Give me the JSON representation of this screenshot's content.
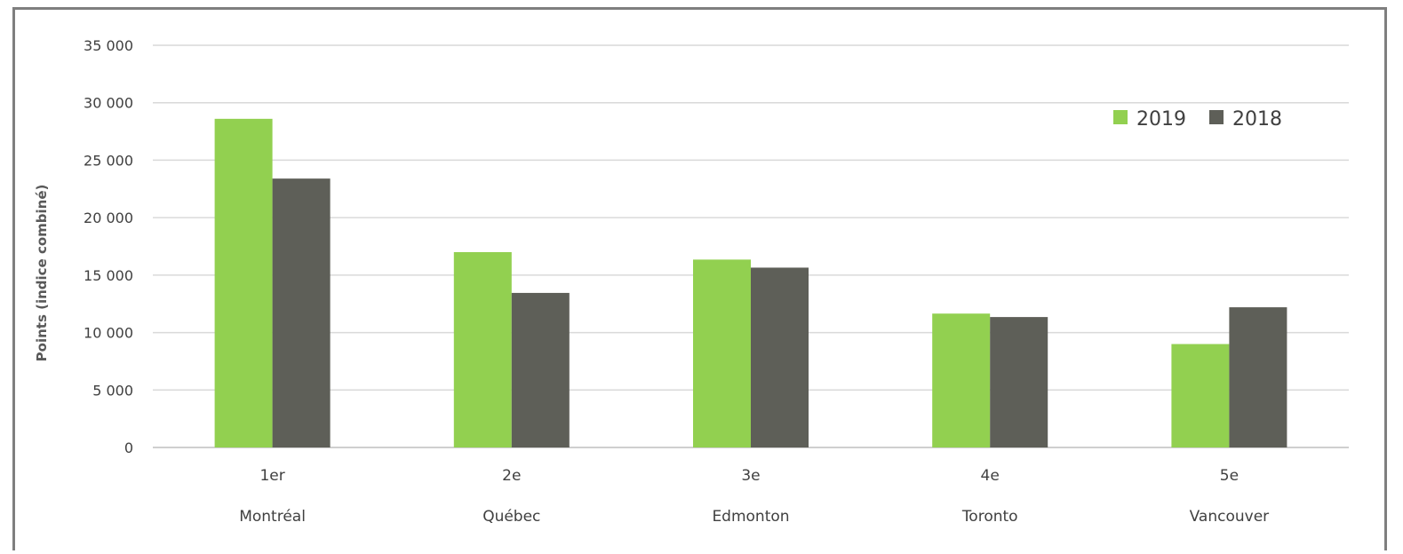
{
  "chart_data": {
    "type": "bar",
    "title": "",
    "xlabel": "",
    "ylabel": "Points (indice combiné)",
    "ylim": [
      0,
      35000
    ],
    "yticks": [
      0,
      5000,
      10000,
      15000,
      20000,
      25000,
      30000,
      35000
    ],
    "ytick_labels": [
      "0",
      "5 000",
      "10 000",
      "15 000",
      "20 000",
      "25 000",
      "30 000",
      "35 000"
    ],
    "categories": [
      {
        "rank": "1er",
        "city": "Montréal"
      },
      {
        "rank": "2e",
        "city": "Québec"
      },
      {
        "rank": "3e",
        "city": "Edmonton"
      },
      {
        "rank": "4e",
        "city": "Toronto"
      },
      {
        "rank": "5e",
        "city": "Vancouver"
      }
    ],
    "series": [
      {
        "name": "2019",
        "color": "#92d050",
        "values": [
          28600,
          17000,
          16350,
          11650,
          9000
        ]
      },
      {
        "name": "2018",
        "color": "#5e5f58",
        "values": [
          23400,
          13450,
          15650,
          11350,
          12200
        ]
      }
    ],
    "grid": true,
    "legend": "top-right"
  }
}
